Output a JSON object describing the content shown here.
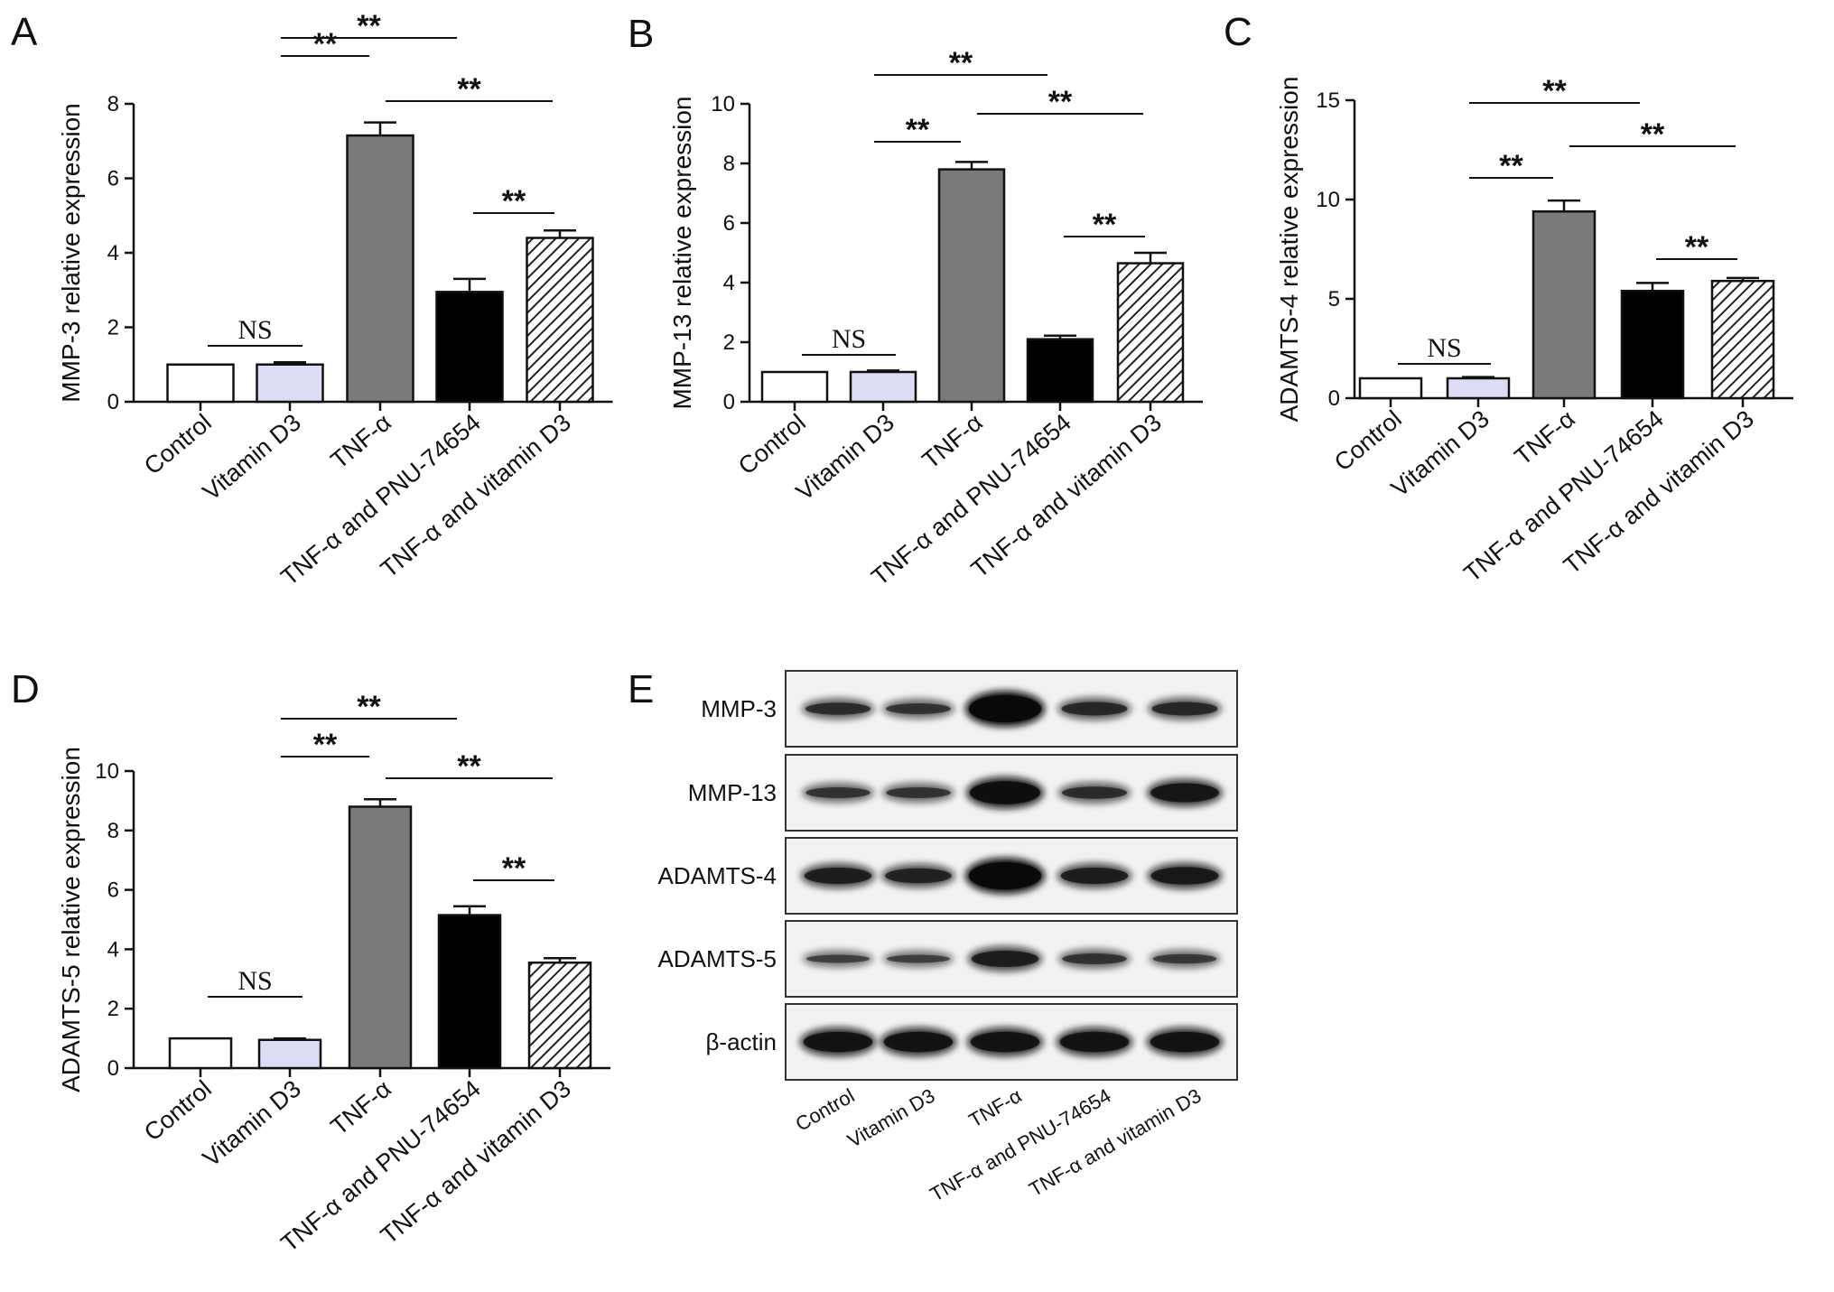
{
  "chart_data": [
    {
      "type": "bar",
      "panel": "A",
      "ylabel": "MMP-3 relative expression",
      "categories": [
        "Control",
        "Vitamin D3",
        "TNF-α",
        "TNF-α and PNU-74654",
        "TNF-α and vitamin D3"
      ],
      "values": [
        1.0,
        1.0,
        7.15,
        2.95,
        4.4
      ],
      "errors": [
        0.0,
        0.06,
        0.35,
        0.35,
        0.2
      ],
      "ylim": [
        0,
        8
      ],
      "yticks": [
        0,
        2,
        4,
        6,
        8
      ],
      "grid": false,
      "annotations": [
        {
          "from": 0,
          "to": 1,
          "label": "NS"
        },
        {
          "from": 1,
          "to": 2,
          "label": "**"
        },
        {
          "from": 1,
          "to": 3,
          "label": "**"
        },
        {
          "from": 2,
          "to": 4,
          "label": "**"
        },
        {
          "from": 3,
          "to": 4,
          "label": "**"
        }
      ]
    },
    {
      "type": "bar",
      "panel": "B",
      "ylabel": "MMP-13 relative expression",
      "categories": [
        "Control",
        "Vitamin D3",
        "TNF-α",
        "TNF-α and PNU-74654",
        "TNF-α and vitamin D3"
      ],
      "values": [
        1.0,
        1.0,
        7.8,
        2.1,
        4.65
      ],
      "errors": [
        0.0,
        0.05,
        0.25,
        0.12,
        0.35
      ],
      "ylim": [
        0,
        10
      ],
      "yticks": [
        0,
        2,
        4,
        6,
        8,
        10
      ],
      "grid": false,
      "annotations": [
        {
          "from": 0,
          "to": 1,
          "label": "NS"
        },
        {
          "from": 1,
          "to": 2,
          "label": "**"
        },
        {
          "from": 1,
          "to": 3,
          "label": "**"
        },
        {
          "from": 2,
          "to": 4,
          "label": "**"
        },
        {
          "from": 3,
          "to": 4,
          "label": "**"
        }
      ]
    },
    {
      "type": "bar",
      "panel": "C",
      "ylabel": "ADAMTS-4 relative expression",
      "categories": [
        "Control",
        "Vitamin D3",
        "TNF-α",
        "TNF-α and PNU-74654",
        "TNF-α and vitamin D3"
      ],
      "values": [
        1.0,
        1.0,
        9.4,
        5.4,
        5.9
      ],
      "errors": [
        0.0,
        0.06,
        0.55,
        0.4,
        0.15
      ],
      "ylim": [
        0,
        15
      ],
      "yticks": [
        0,
        5,
        10,
        15
      ],
      "grid": false,
      "annotations": [
        {
          "from": 0,
          "to": 1,
          "label": "NS"
        },
        {
          "from": 1,
          "to": 2,
          "label": "**"
        },
        {
          "from": 1,
          "to": 3,
          "label": "**"
        },
        {
          "from": 2,
          "to": 4,
          "label": "**"
        },
        {
          "from": 3,
          "to": 4,
          "label": "**"
        }
      ]
    },
    {
      "type": "bar",
      "panel": "D",
      "ylabel": "ADAMTS-5 relative expression",
      "categories": [
        "Control",
        "Vitamin D3",
        "TNF-α",
        "TNF-α and PNU-74654",
        "TNF-α and vitamin D3"
      ],
      "values": [
        1.0,
        0.95,
        8.8,
        5.15,
        3.55
      ],
      "errors": [
        0.0,
        0.05,
        0.25,
        0.3,
        0.15
      ],
      "ylim": [
        0,
        10
      ],
      "yticks": [
        0,
        2,
        4,
        6,
        8,
        10
      ],
      "grid": false,
      "annotations": [
        {
          "from": 0,
          "to": 1,
          "label": "NS"
        },
        {
          "from": 1,
          "to": 2,
          "label": "**"
        },
        {
          "from": 1,
          "to": 3,
          "label": "**"
        },
        {
          "from": 2,
          "to": 4,
          "label": "**"
        },
        {
          "from": 3,
          "to": 4,
          "label": "**"
        }
      ]
    }
  ],
  "bar_styles": [
    {
      "fill": "#ffffff",
      "pattern": "none"
    },
    {
      "fill": "#dcdcf4",
      "pattern": "none"
    },
    {
      "fill": "#7a7a7a",
      "pattern": "none"
    },
    {
      "fill": "#000000",
      "pattern": "none"
    },
    {
      "fill": "#ffffff",
      "pattern": "diagonal-hatch"
    }
  ],
  "western_blot": {
    "panel": "E",
    "rows": [
      {
        "label": "MMP-3",
        "intensity": [
          0.45,
          0.4,
          1.0,
          0.5,
          0.5
        ]
      },
      {
        "label": "MMP-13",
        "intensity": [
          0.4,
          0.4,
          0.85,
          0.45,
          0.7
        ]
      },
      {
        "label": "ADAMTS-4",
        "intensity": [
          0.6,
          0.55,
          1.0,
          0.6,
          0.65
        ]
      },
      {
        "label": "ADAMTS-5",
        "intensity": [
          0.3,
          0.3,
          0.6,
          0.4,
          0.35
        ]
      },
      {
        "label": "β-actin",
        "intensity": [
          0.75,
          0.75,
          0.75,
          0.75,
          0.75
        ]
      }
    ],
    "lanes": [
      "Control",
      "Vitamin D3",
      "TNF-α",
      "TNF-α and PNU-74654",
      "TNF-α and vitamin D3"
    ]
  }
}
